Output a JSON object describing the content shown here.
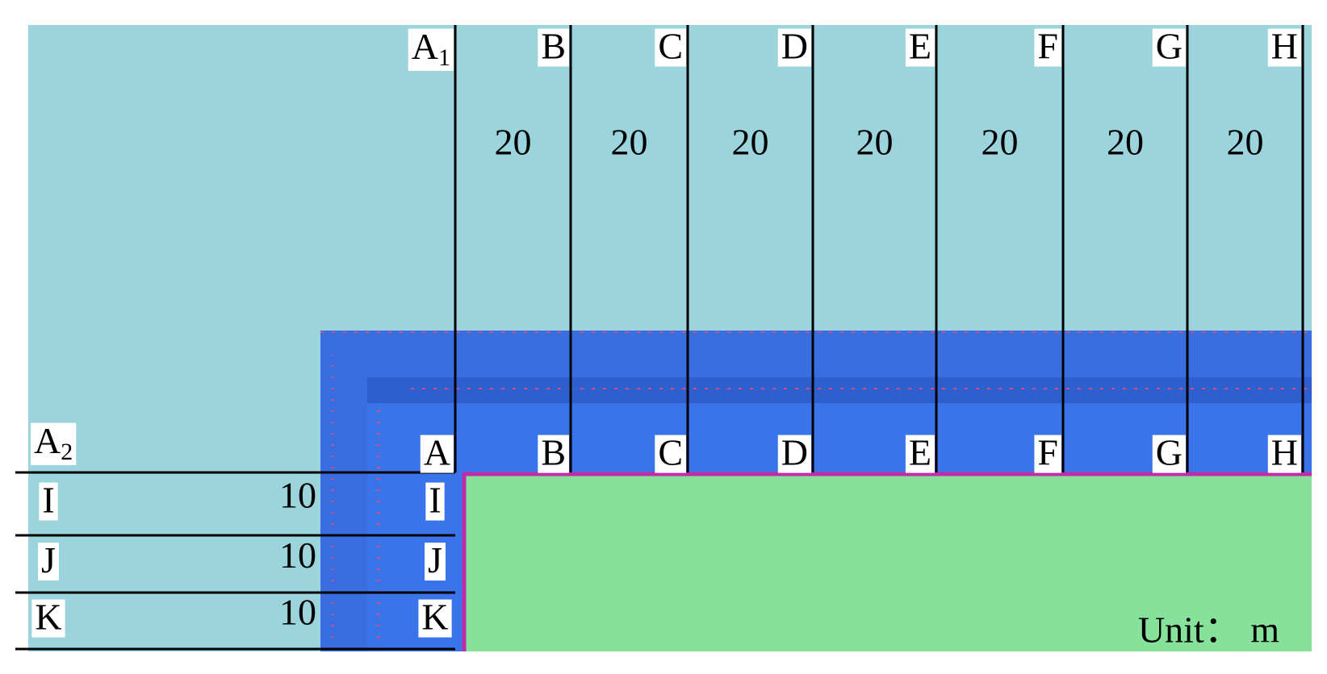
{
  "top_labels": [
    {
      "main": "A",
      "sub": "1"
    },
    "B",
    "C",
    "D",
    "E",
    "F",
    "G",
    "H"
  ],
  "top_spacings": [
    "20",
    "20",
    "20",
    "20",
    "20",
    "20",
    "20"
  ],
  "wall_labels": [
    "A",
    "B",
    "C",
    "D",
    "E",
    "F",
    "G",
    "H"
  ],
  "left_label": {
    "main": "A",
    "sub": "2"
  },
  "left_labels": [
    "I",
    "J",
    "K"
  ],
  "left_spacings": [
    "10",
    "10",
    "10"
  ],
  "inner_labels": [
    "I",
    "J",
    "K"
  ],
  "unit": "Unit： m"
}
